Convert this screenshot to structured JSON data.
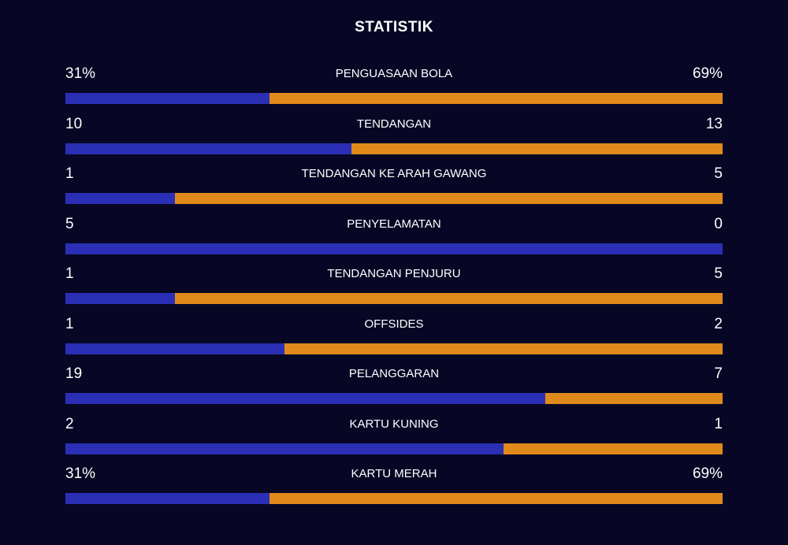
{
  "title": "STATISTIK",
  "colors": {
    "background": "#070725",
    "home": "#2a2fb6",
    "away": "#e08a1b"
  },
  "stats": [
    {
      "label": "PENGUASAAN BOLA",
      "home": "31%",
      "away": "69%",
      "home_share": 0.31
    },
    {
      "label": "TENDANGAN",
      "home": "10",
      "away": "13",
      "home_share": 0.4348
    },
    {
      "label": "TENDANGAN KE ARAH GAWANG",
      "home": "1",
      "away": "5",
      "home_share": 0.1667
    },
    {
      "label": "PENYELAMATAN",
      "home": "5",
      "away": "0",
      "home_share": 1.0
    },
    {
      "label": "TENDANGAN PENJURU",
      "home": "1",
      "away": "5",
      "home_share": 0.1667
    },
    {
      "label": "OFFSIDES",
      "home": "1",
      "away": "2",
      "home_share": 0.3333
    },
    {
      "label": "PELANGGARAN",
      "home": "19",
      "away": "7",
      "home_share": 0.7308
    },
    {
      "label": "KARTU KUNING",
      "home": "2",
      "away": "1",
      "home_share": 0.6667
    },
    {
      "label": "KARTU MERAH",
      "home": "31%",
      "away": "69%",
      "home_share": 0.31
    }
  ]
}
